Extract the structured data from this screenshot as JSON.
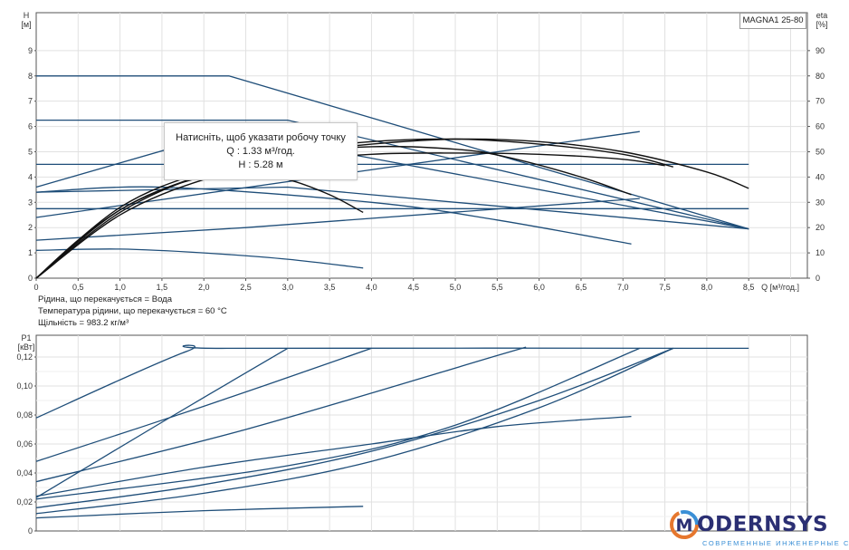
{
  "model": "MAGNA1 25-80",
  "tooltip": {
    "line1": "Натисніть, щоб указати робочу точку",
    "line2": "Q : 1.33 м³/год.",
    "line3": "H : 5.28 м"
  },
  "info": {
    "liquid": "Рідина, що перекачується = Вода",
    "temperature": "Температура рідини, що перекачується = 60 °C",
    "density": "Щільність = 983.2 кг/м³"
  },
  "logo": {
    "word": "ODERNSYS",
    "tagline": "СОВРЕМЕННЫЕ ИНЖЕНЕРНЫЕ СИСТЕМЫ"
  },
  "colors": {
    "curve": "#1f4e79",
    "grid": "#e1e1e1",
    "axis": "#555555",
    "tooltip_curve": "#111111"
  },
  "chart_data": [
    {
      "type": "line",
      "y_label_top": "H",
      "y_label_unit": "[м]",
      "y2_label_top": "eta",
      "y2_label_unit": "[%]",
      "xlabel": "Q [м³/год.]",
      "xlim": [
        0,
        9.2
      ],
      "ylim": [
        0,
        10.5
      ],
      "y2lim": [
        0,
        105
      ],
      "x_ticks": [
        "0",
        "0,5",
        "1,0",
        "1,5",
        "2,0",
        "2,5",
        "3,0",
        "3,5",
        "4,0",
        "4,5",
        "5,0",
        "5,5",
        "6,0",
        "6,5",
        "7,0",
        "7,5",
        "8,0",
        "8,5"
      ],
      "x_tick_values": [
        0,
        0.5,
        1.0,
        1.5,
        2.0,
        2.5,
        3.0,
        3.5,
        4.0,
        4.5,
        5.0,
        5.5,
        6.0,
        6.5,
        7.0,
        7.5,
        8.0,
        8.5
      ],
      "y_ticks": [
        "0",
        "1",
        "2",
        "3",
        "4",
        "5",
        "6",
        "7",
        "8",
        "9"
      ],
      "y_tick_values": [
        0,
        1,
        2,
        3,
        4,
        5,
        6,
        7,
        8,
        9
      ],
      "y2_ticks": [
        "0",
        "10",
        "20",
        "30",
        "40",
        "50",
        "60",
        "70",
        "80",
        "90"
      ],
      "grid": true,
      "series": [
        {
          "style": "head",
          "x": [
            0,
            2.3,
            8.5
          ],
          "y": [
            8,
            8,
            1.95
          ]
        },
        {
          "style": "head",
          "x": [
            0,
            3.0,
            8.5
          ],
          "y": [
            6.25,
            6.25,
            1.95
          ]
        },
        {
          "style": "head",
          "x": [
            0,
            8.5
          ],
          "y": [
            4.5,
            4.5
          ]
        },
        {
          "style": "head",
          "x": [
            0,
            8.5
          ],
          "y": [
            2.75,
            2.75
          ]
        },
        {
          "style": "head",
          "x": [
            0,
            2.3,
            8.5
          ],
          "y": [
            3.6,
            5.8,
            1.95
          ]
        },
        {
          "style": "head",
          "x": [
            0,
            3.0,
            8.5
          ],
          "y": [
            3.4,
            3.6,
            1.95
          ]
        },
        {
          "style": "head",
          "x": [
            0,
            1.5,
            4.0,
            5.5,
            7.1
          ],
          "y": [
            3.4,
            3.6,
            3.0,
            2.3,
            1.35
          ]
        },
        {
          "style": "head",
          "x": [
            0,
            7.2
          ],
          "y": [
            2.4,
            5.8
          ]
        },
        {
          "style": "head",
          "x": [
            0,
            2.5,
            7.2
          ],
          "y": [
            1.5,
            2.0,
            3.15
          ]
        },
        {
          "style": "head",
          "x": [
            0,
            1.0,
            2.0,
            3.0,
            3.9
          ],
          "y": [
            1.1,
            1.15,
            1.0,
            0.75,
            0.4
          ]
        },
        {
          "style": "eff",
          "x": [
            0,
            0.5,
            1.0,
            1.5,
            2.0,
            2.5,
            3.0,
            3.5,
            3.9
          ],
          "y": [
            0,
            1.5,
            2.7,
            3.5,
            4.0,
            4.1,
            3.9,
            3.3,
            2.6
          ]
        },
        {
          "style": "eff",
          "x": [
            0,
            1.0,
            2.0,
            3.0,
            4.0,
            5.0,
            5.6,
            6.5,
            7.1
          ],
          "y": [
            0,
            2.6,
            4.1,
            4.9,
            5.2,
            5.1,
            4.8,
            4.0,
            3.3
          ]
        },
        {
          "style": "eff",
          "x": [
            0,
            1.0,
            2.0,
            3.0,
            4.0,
            5.0,
            6.0,
            7.0,
            7.6
          ],
          "y": [
            0,
            2.7,
            4.1,
            5.0,
            5.4,
            5.5,
            5.3,
            4.9,
            4.4
          ]
        },
        {
          "style": "eff",
          "x": [
            0,
            1.0,
            2.0,
            3.0,
            4.0,
            5.0,
            6.0,
            7.0,
            8.0,
            8.5
          ],
          "y": [
            0,
            2.8,
            4.2,
            4.9,
            5.3,
            5.5,
            5.4,
            5.0,
            4.2,
            3.55
          ]
        },
        {
          "style": "eff",
          "x": [
            0,
            1.0,
            2.0,
            3.0,
            4.0,
            5.0,
            6.0,
            7.0,
            7.5
          ],
          "y": [
            0,
            2.5,
            3.9,
            4.6,
            4.9,
            4.95,
            4.9,
            4.7,
            4.45
          ]
        }
      ]
    },
    {
      "type": "line",
      "y_label_top": "P1",
      "y_label_unit": "[кВт]",
      "xlim": [
        0,
        9.2
      ],
      "ylim": [
        0,
        0.135
      ],
      "y_ticks": [
        "0",
        "0,02",
        "0,04",
        "0,06",
        "0,08",
        "0,10",
        "0,12"
      ],
      "y_tick_values": [
        0,
        0.02,
        0.04,
        0.06,
        0.08,
        0.1,
        0.12
      ],
      "grid": true,
      "series": [
        {
          "x": [
            0,
            1.8,
            2.3,
            8.5
          ],
          "y": [
            0.078,
            0.124,
            0.126,
            0.126
          ]
        },
        {
          "x": [
            0,
            2.0,
            4.0
          ],
          "y": [
            0.048,
            0.086,
            0.126
          ]
        },
        {
          "x": [
            0,
            1.5,
            3.0
          ],
          "y": [
            0.023,
            0.075,
            0.126
          ]
        },
        {
          "x": [
            0,
            2.5,
            5.5,
            5.8
          ],
          "y": [
            0.034,
            0.07,
            0.121,
            0.126
          ]
        },
        {
          "x": [
            0,
            3.0,
            5.0,
            7.2
          ],
          "y": [
            0.022,
            0.045,
            0.073,
            0.126
          ]
        },
        {
          "x": [
            0,
            2.0,
            4.0,
            5.5,
            7.1
          ],
          "y": [
            0.024,
            0.044,
            0.06,
            0.072,
            0.079
          ]
        },
        {
          "x": [
            0,
            2.0,
            4.0,
            6.0,
            7.6
          ],
          "y": [
            0.016,
            0.032,
            0.055,
            0.09,
            0.126
          ]
        },
        {
          "x": [
            0,
            2.0,
            4.0,
            6.0,
            7.6
          ],
          "y": [
            0.012,
            0.026,
            0.048,
            0.085,
            0.126
          ]
        },
        {
          "x": [
            0,
            2.0,
            3.9
          ],
          "y": [
            0.009,
            0.014,
            0.017
          ]
        }
      ]
    }
  ]
}
